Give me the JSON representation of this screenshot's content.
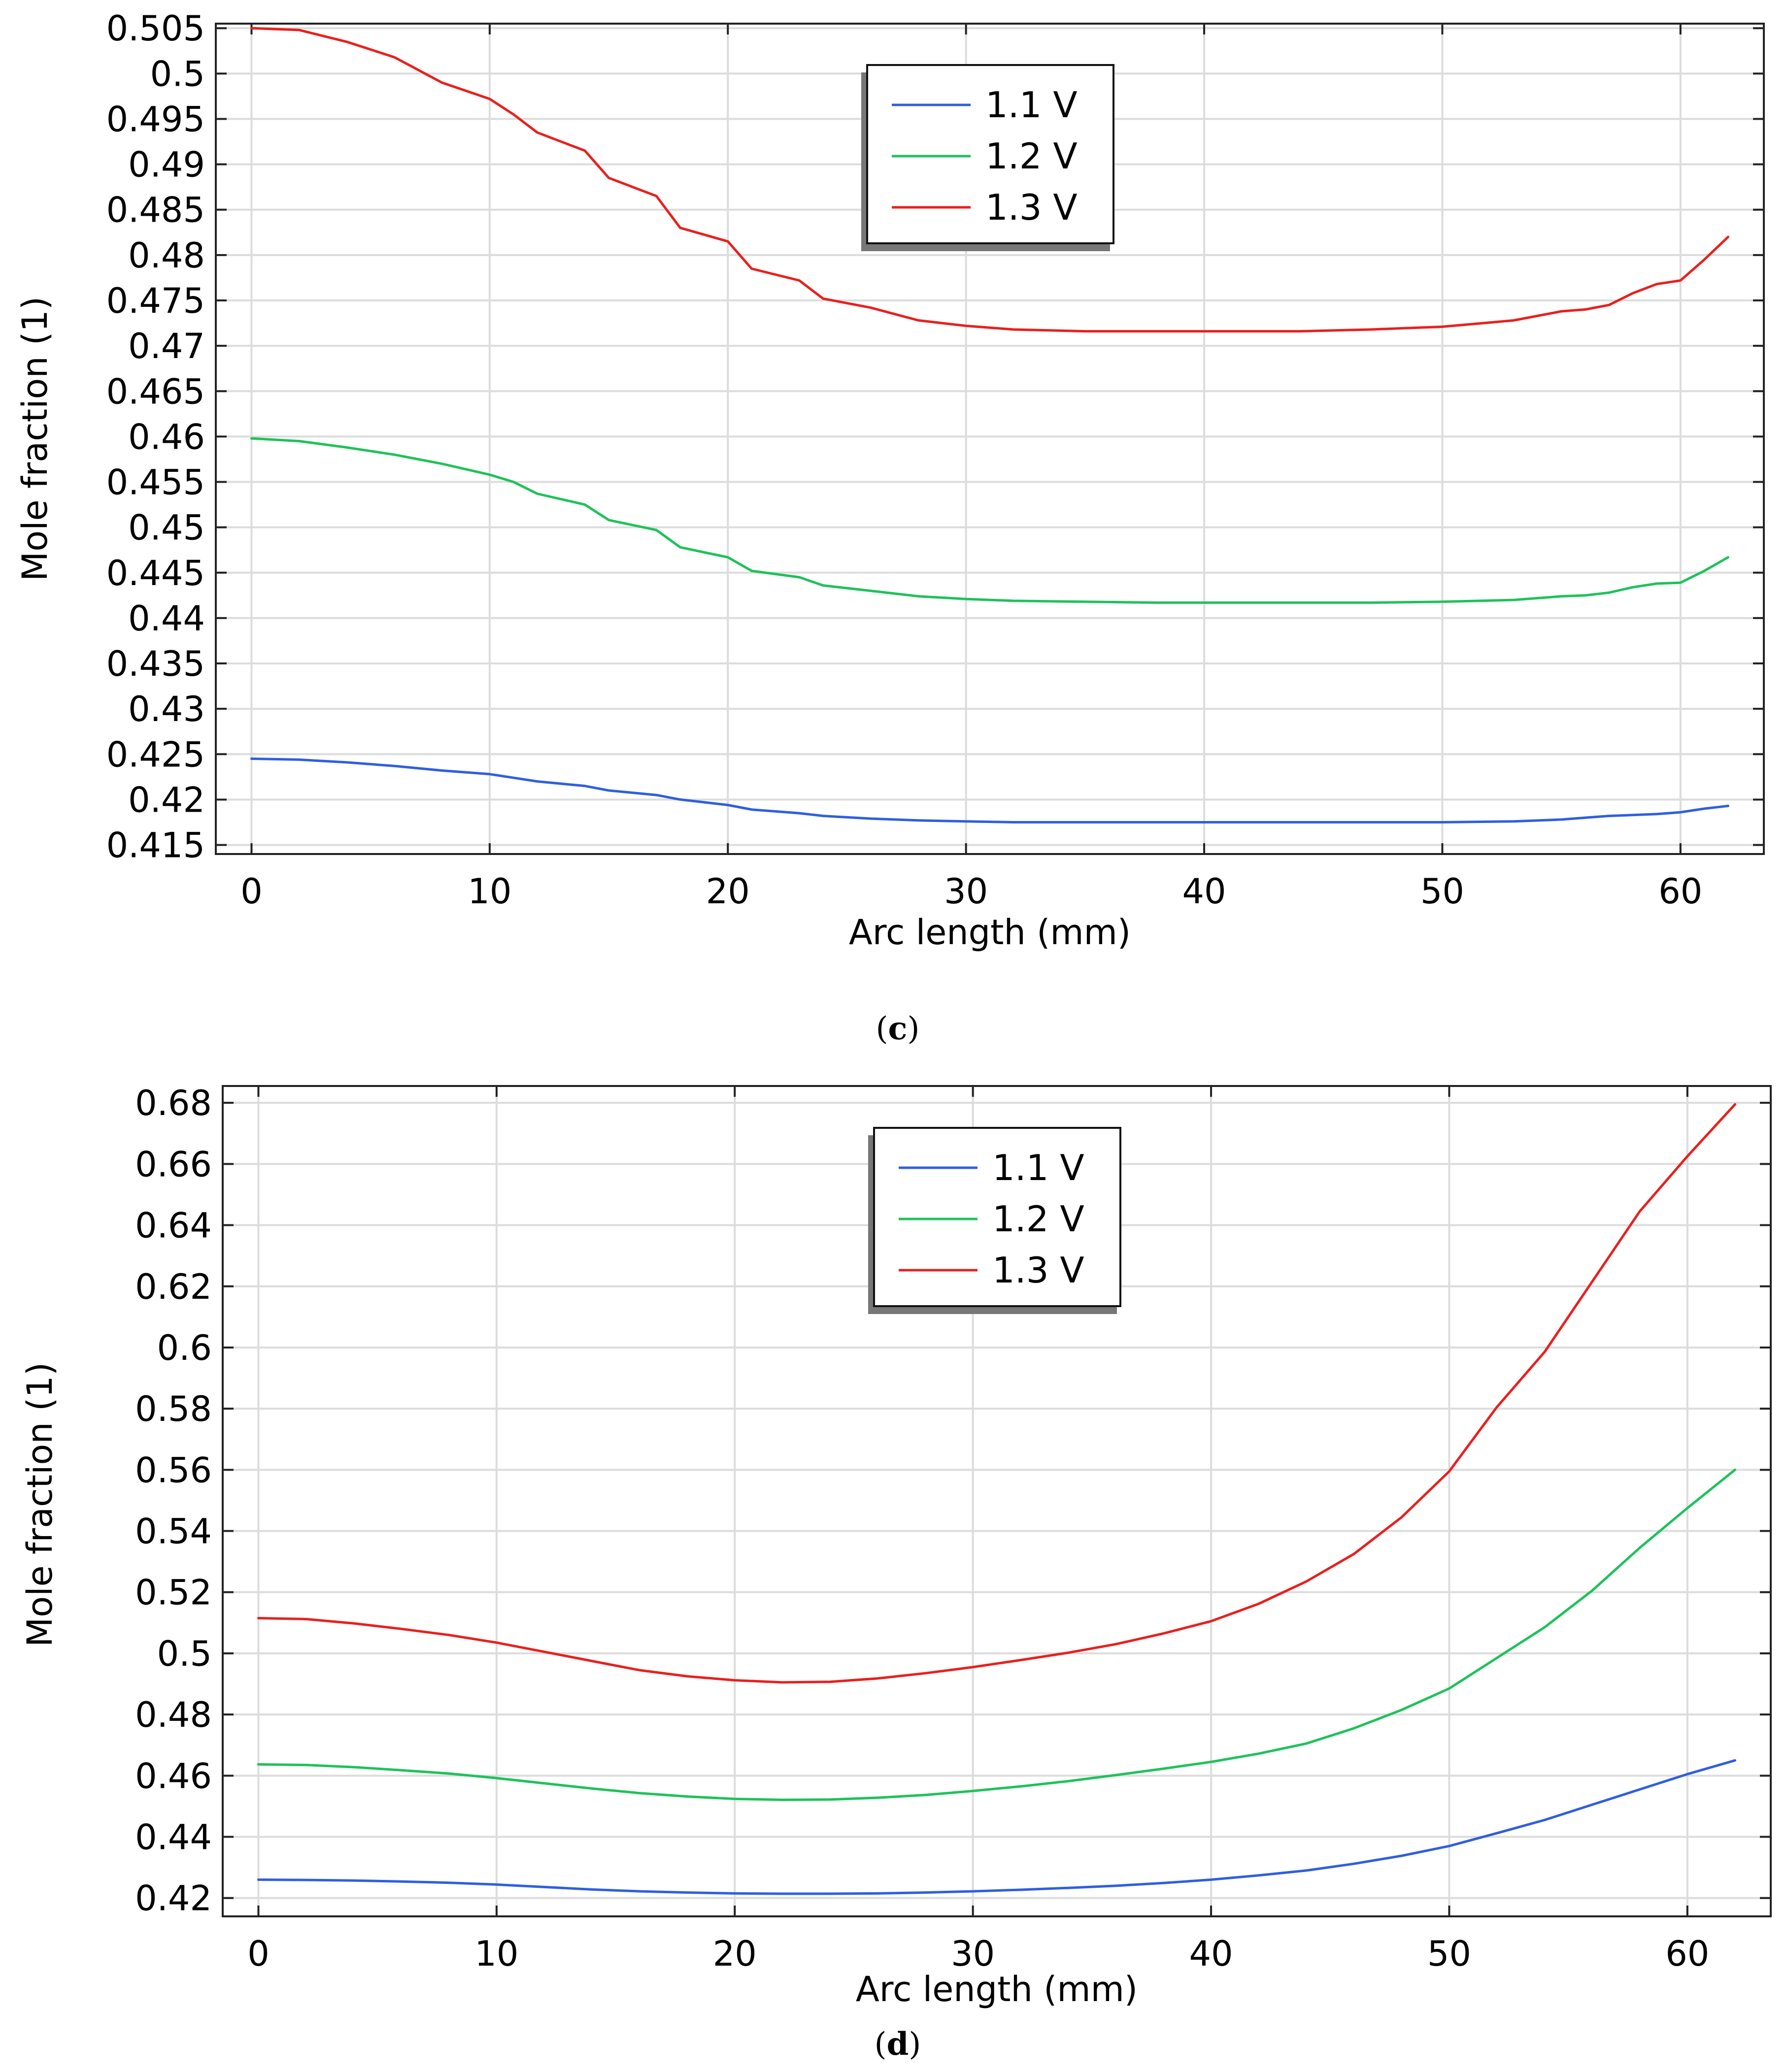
{
  "figure": {
    "captions": [
      {
        "open": "(",
        "letter": "c",
        "close": ")"
      },
      {
        "open": "(",
        "letter": "d",
        "close": ")"
      }
    ]
  },
  "chart_data": [
    {
      "type": "line",
      "title": "",
      "xlabel": "Arc length (mm)",
      "ylabel": "Mole fraction (1)",
      "xlim": [
        -1.5,
        63.5
      ],
      "ylim": [
        0.414,
        0.5055
      ],
      "xticks": [
        0,
        10,
        20,
        30,
        40,
        50,
        60
      ],
      "xtick_labels": [
        "0",
        "10",
        "20",
        "30",
        "40",
        "50",
        "60"
      ],
      "yticks": [
        0.415,
        0.42,
        0.425,
        0.43,
        0.435,
        0.44,
        0.445,
        0.45,
        0.455,
        0.46,
        0.465,
        0.47,
        0.475,
        0.48,
        0.485,
        0.49,
        0.495,
        0.5,
        0.505
      ],
      "ytick_labels": [
        "0.415",
        "0.42",
        "0.425",
        "0.43",
        "0.435",
        "0.44",
        "0.445",
        "0.45",
        "0.455",
        "0.46",
        "0.465",
        "0.47",
        "0.475",
        "0.48",
        "0.485",
        "0.49",
        "0.495",
        "0.5",
        "0.505"
      ],
      "grid": true,
      "legend_position": "top-center",
      "x": [
        0,
        2,
        4,
        6,
        8,
        10,
        11,
        12,
        14,
        15,
        17,
        18,
        20,
        21,
        23,
        24,
        26,
        28,
        30,
        32,
        35,
        38,
        41,
        44,
        47,
        50,
        53,
        55,
        56,
        57,
        58,
        59,
        60,
        61,
        62
      ],
      "series": [
        {
          "name": "1.1 V",
          "color": "#2f5fe0",
          "values": [
            0.4245,
            0.4244,
            0.4241,
            0.4237,
            0.4232,
            0.4228,
            0.4224,
            0.422,
            0.4215,
            0.421,
            0.4205,
            0.42,
            0.4194,
            0.4189,
            0.4185,
            0.4182,
            0.4179,
            0.4177,
            0.4176,
            0.4175,
            0.4175,
            0.4175,
            0.4175,
            0.4175,
            0.4175,
            0.4175,
            0.4176,
            0.4178,
            0.418,
            0.4182,
            0.4183,
            0.4184,
            0.4186,
            0.419,
            0.4193
          ]
        },
        {
          "name": "1.2 V",
          "color": "#1ec25a",
          "values": [
            0.4598,
            0.4595,
            0.4588,
            0.458,
            0.457,
            0.4558,
            0.455,
            0.4537,
            0.4525,
            0.4508,
            0.4497,
            0.4478,
            0.4467,
            0.4452,
            0.4445,
            0.4436,
            0.443,
            0.4424,
            0.4421,
            0.4419,
            0.4418,
            0.4417,
            0.4417,
            0.4417,
            0.4417,
            0.4418,
            0.442,
            0.4424,
            0.4425,
            0.4428,
            0.4434,
            0.4438,
            0.4439,
            0.4452,
            0.4467
          ]
        },
        {
          "name": "1.3 V",
          "color": "#e8201e",
          "values": [
            0.505,
            0.5048,
            0.5035,
            0.5018,
            0.499,
            0.4972,
            0.4955,
            0.4935,
            0.4915,
            0.4885,
            0.4865,
            0.483,
            0.4815,
            0.4785,
            0.4772,
            0.4752,
            0.4742,
            0.4728,
            0.4722,
            0.4718,
            0.4716,
            0.4716,
            0.4716,
            0.4716,
            0.4718,
            0.4721,
            0.4728,
            0.4738,
            0.474,
            0.4745,
            0.4758,
            0.4768,
            0.4772,
            0.4795,
            0.482
          ]
        }
      ]
    },
    {
      "type": "line",
      "title": "",
      "xlabel": "Arc length (mm)",
      "ylabel": "Mole fraction (1)",
      "xlim": [
        -1.5,
        63.5
      ],
      "ylim": [
        0.414,
        0.6855
      ],
      "xticks": [
        0,
        10,
        20,
        30,
        40,
        50,
        60
      ],
      "xtick_labels": [
        "0",
        "10",
        "20",
        "30",
        "40",
        "50",
        "60"
      ],
      "yticks": [
        0.42,
        0.44,
        0.46,
        0.48,
        0.5,
        0.52,
        0.54,
        0.56,
        0.58,
        0.6,
        0.62,
        0.64,
        0.66,
        0.68
      ],
      "ytick_labels": [
        "0.42",
        "0.44",
        "0.46",
        "0.48",
        "0.5",
        "0.52",
        "0.54",
        "0.56",
        "0.58",
        "0.6",
        "0.62",
        "0.64",
        "0.66",
        "0.68"
      ],
      "grid": true,
      "legend_position": "top-center",
      "x": [
        0,
        2,
        4,
        6,
        8,
        10,
        12,
        14,
        16,
        18,
        20,
        22,
        24,
        26,
        28,
        30,
        32,
        34,
        36,
        38,
        40,
        42,
        44,
        46,
        48,
        50,
        52,
        54,
        56,
        58,
        60,
        62
      ],
      "series": [
        {
          "name": "1.1 V",
          "color": "#2f5fe0",
          "values": [
            0.426,
            0.4259,
            0.4257,
            0.4254,
            0.425,
            0.4244,
            0.4236,
            0.4228,
            0.4222,
            0.4218,
            0.4215,
            0.4214,
            0.4214,
            0.4215,
            0.4218,
            0.4222,
            0.4227,
            0.4233,
            0.424,
            0.4249,
            0.426,
            0.4274,
            0.429,
            0.4312,
            0.4338,
            0.437,
            0.4412,
            0.4455,
            0.4505,
            0.4555,
            0.4605,
            0.465
          ]
        },
        {
          "name": "1.2 V",
          "color": "#1ec25a",
          "values": [
            0.4637,
            0.4635,
            0.4628,
            0.4618,
            0.4607,
            0.4592,
            0.4575,
            0.4558,
            0.4543,
            0.4532,
            0.4524,
            0.4521,
            0.4522,
            0.4528,
            0.4537,
            0.455,
            0.4565,
            0.4582,
            0.4602,
            0.4623,
            0.4645,
            0.4672,
            0.4705,
            0.4755,
            0.4815,
            0.4885,
            0.4985,
            0.5085,
            0.5205,
            0.5345,
            0.5475,
            0.56
          ]
        },
        {
          "name": "1.3 V",
          "color": "#e8201e",
          "values": [
            0.5115,
            0.5112,
            0.5098,
            0.508,
            0.506,
            0.5035,
            0.5005,
            0.4975,
            0.4945,
            0.4925,
            0.4912,
            0.4905,
            0.4907,
            0.4918,
            0.4935,
            0.4955,
            0.4978,
            0.5002,
            0.503,
            0.5065,
            0.5105,
            0.5162,
            0.5235,
            0.5325,
            0.5445,
            0.5595,
            0.5805,
            0.5985,
            0.6215,
            0.6445,
            0.6625,
            0.6795
          ]
        }
      ]
    }
  ]
}
